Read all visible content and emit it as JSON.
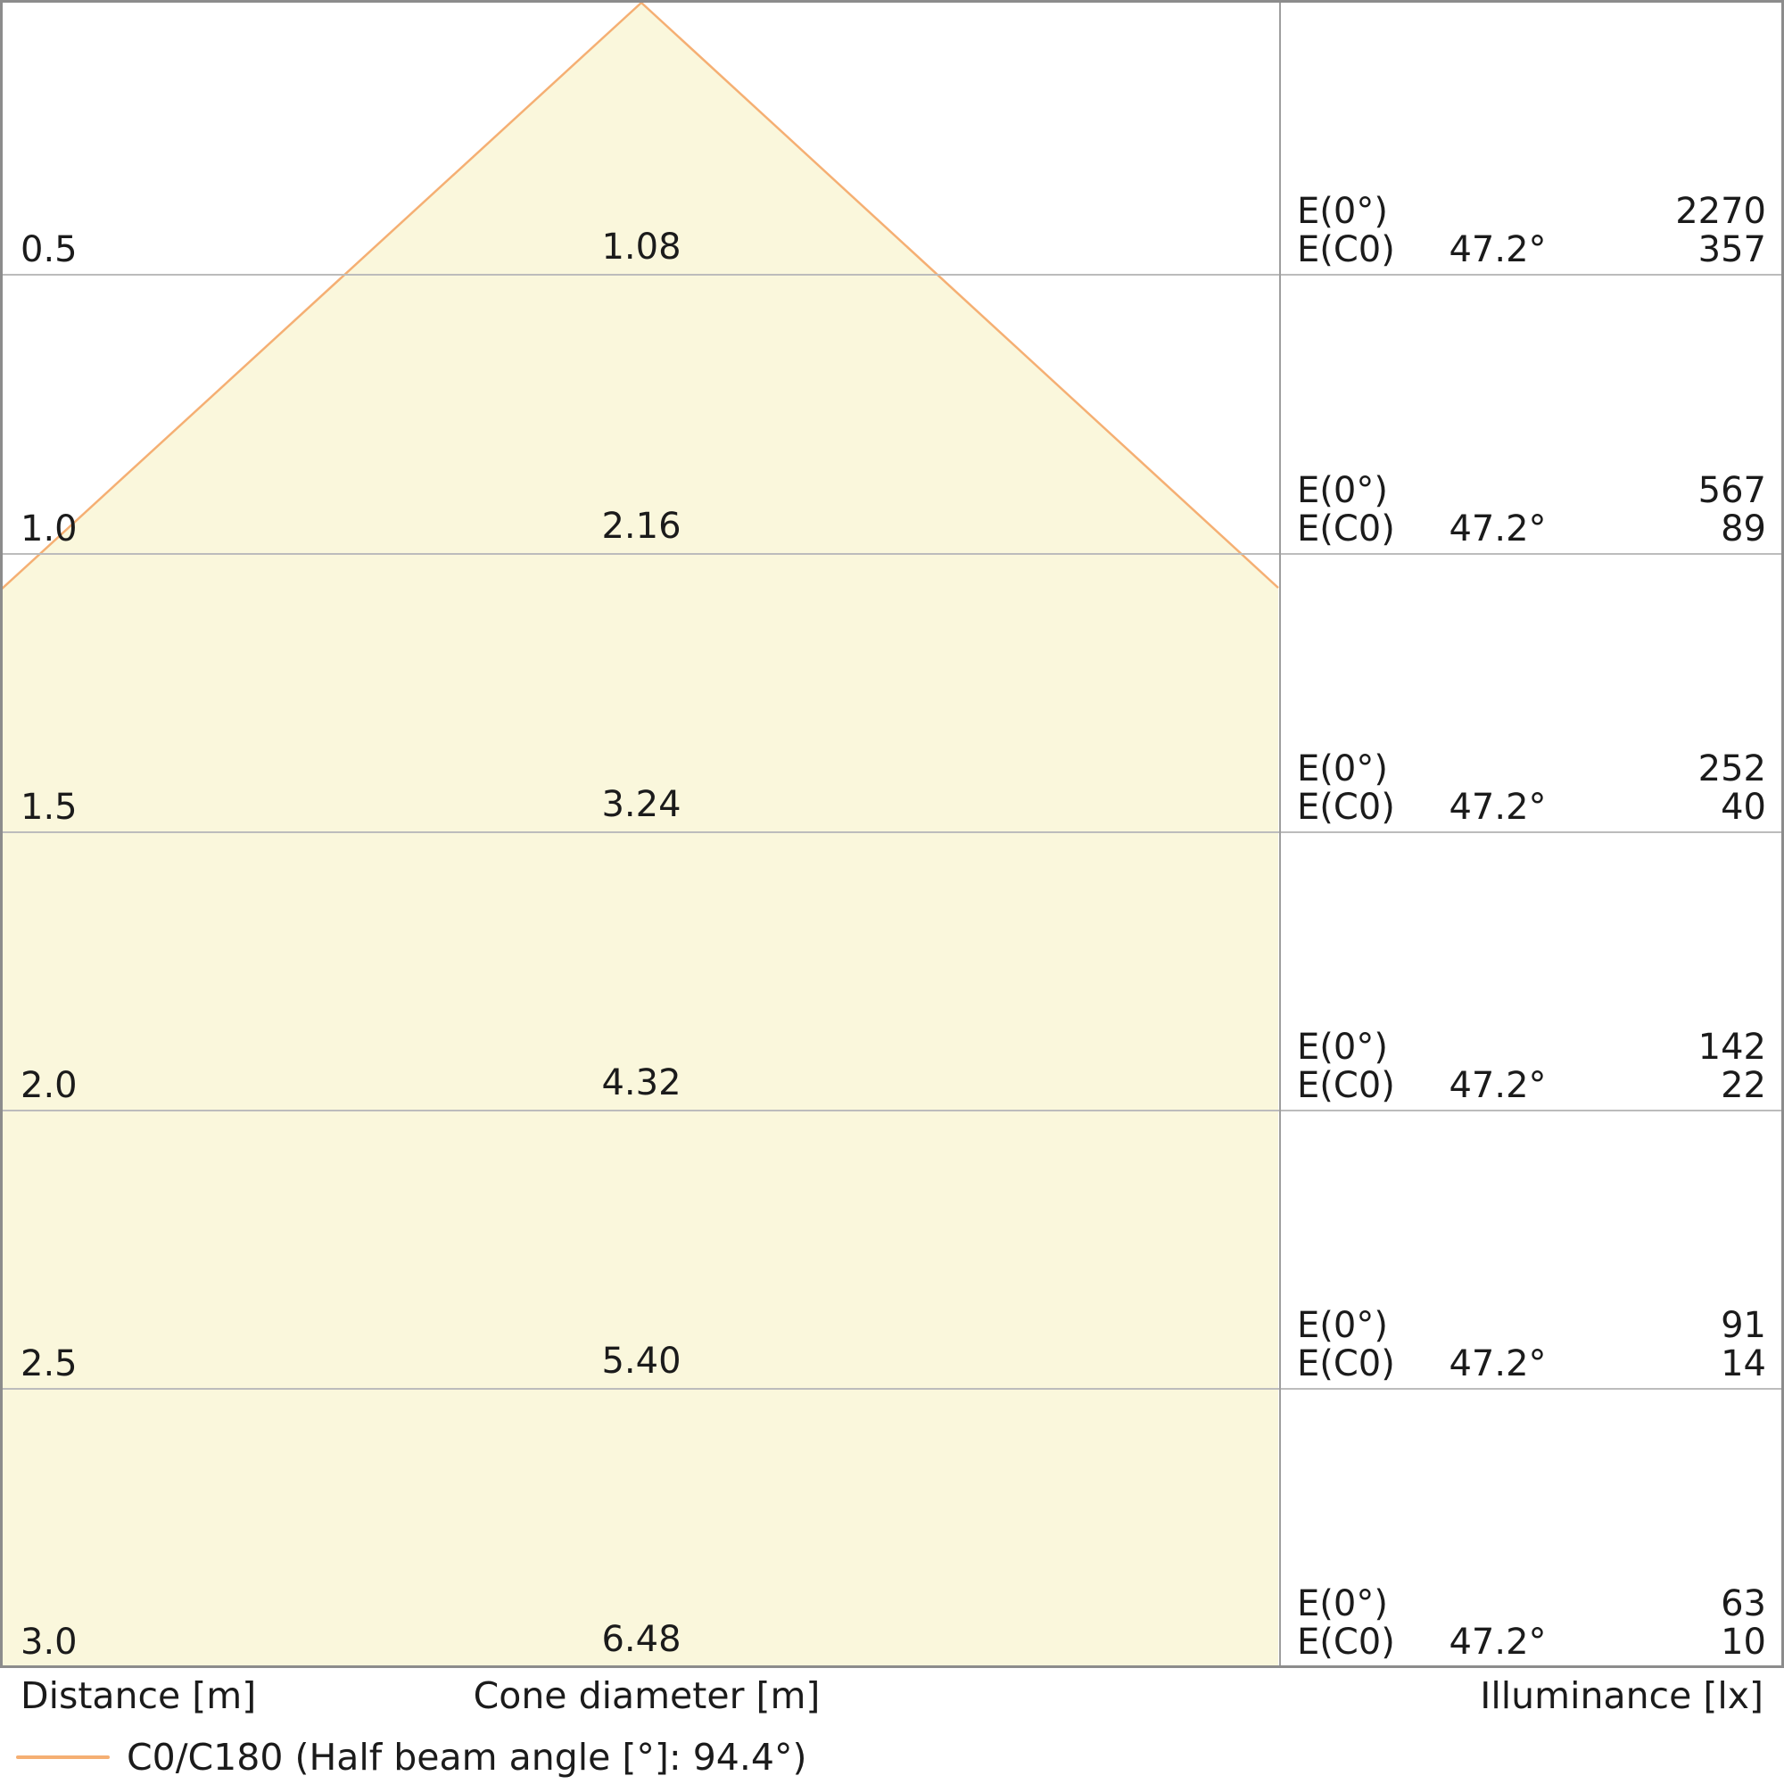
{
  "chart_data": {
    "type": "area",
    "description": "Photometric light cone diagram of a luminaire beam with illuminance table",
    "distance_m": [
      0.5,
      1.0,
      1.5,
      2.0,
      2.5,
      3.0
    ],
    "cone_diameter_m": [
      1.08,
      2.16,
      3.24,
      4.32,
      5.4,
      6.48
    ],
    "illuminance_lx": {
      "E0": [
        2270,
        567,
        252,
        142,
        91,
        63
      ],
      "EC0": [
        357,
        89,
        40,
        22,
        14,
        10
      ],
      "EC0_angle_deg": 47.2
    },
    "half_beam_angle_deg": 94.4,
    "xlabel": "Distance [m]",
    "center_label": "Cone diameter [m]",
    "right_label": "Illuminance [lx]",
    "legend_entries": [
      "C0/C180 (Half beam angle [°]: 94.4°)"
    ],
    "legend_position": "bottom-left",
    "grid": true
  },
  "rows": [
    {
      "distance": "0.5",
      "diameter": "1.08",
      "e0_label": "E(0°)",
      "e0_value": "2270",
      "ec0_label": "E(C0)",
      "ec0_angle": "47.2°",
      "ec0_value": "357"
    },
    {
      "distance": "1.0",
      "diameter": "2.16",
      "e0_label": "E(0°)",
      "e0_value": "567",
      "ec0_label": "E(C0)",
      "ec0_angle": "47.2°",
      "ec0_value": "89"
    },
    {
      "distance": "1.5",
      "diameter": "3.24",
      "e0_label": "E(0°)",
      "e0_value": "252",
      "ec0_label": "E(C0)",
      "ec0_angle": "47.2°",
      "ec0_value": "40"
    },
    {
      "distance": "2.0",
      "diameter": "4.32",
      "e0_label": "E(0°)",
      "e0_value": "142",
      "ec0_label": "E(C0)",
      "ec0_angle": "47.2°",
      "ec0_value": "22"
    },
    {
      "distance": "2.5",
      "diameter": "5.40",
      "e0_label": "E(0°)",
      "e0_value": "91",
      "ec0_label": "E(C0)",
      "ec0_angle": "47.2°",
      "ec0_value": "14"
    },
    {
      "distance": "3.0",
      "diameter": "6.48",
      "e0_label": "E(0°)",
      "e0_value": "63",
      "ec0_label": "E(C0)",
      "ec0_angle": "47.2°",
      "ec0_value": "10"
    }
  ],
  "axis": {
    "distance_label": "Distance [m]",
    "cone_label": "Cone diameter [m]",
    "illuminance_label": "Illuminance [lx]"
  },
  "legend": {
    "label": "C0/C180 (Half beam angle [°]: 94.4°)"
  },
  "colors": {
    "cone_fill": "#faf7dc",
    "cone_line": "#f5af73",
    "gridline": "#bcbcbc",
    "border": "#8c8c8c",
    "text": "#1b1b1b"
  }
}
